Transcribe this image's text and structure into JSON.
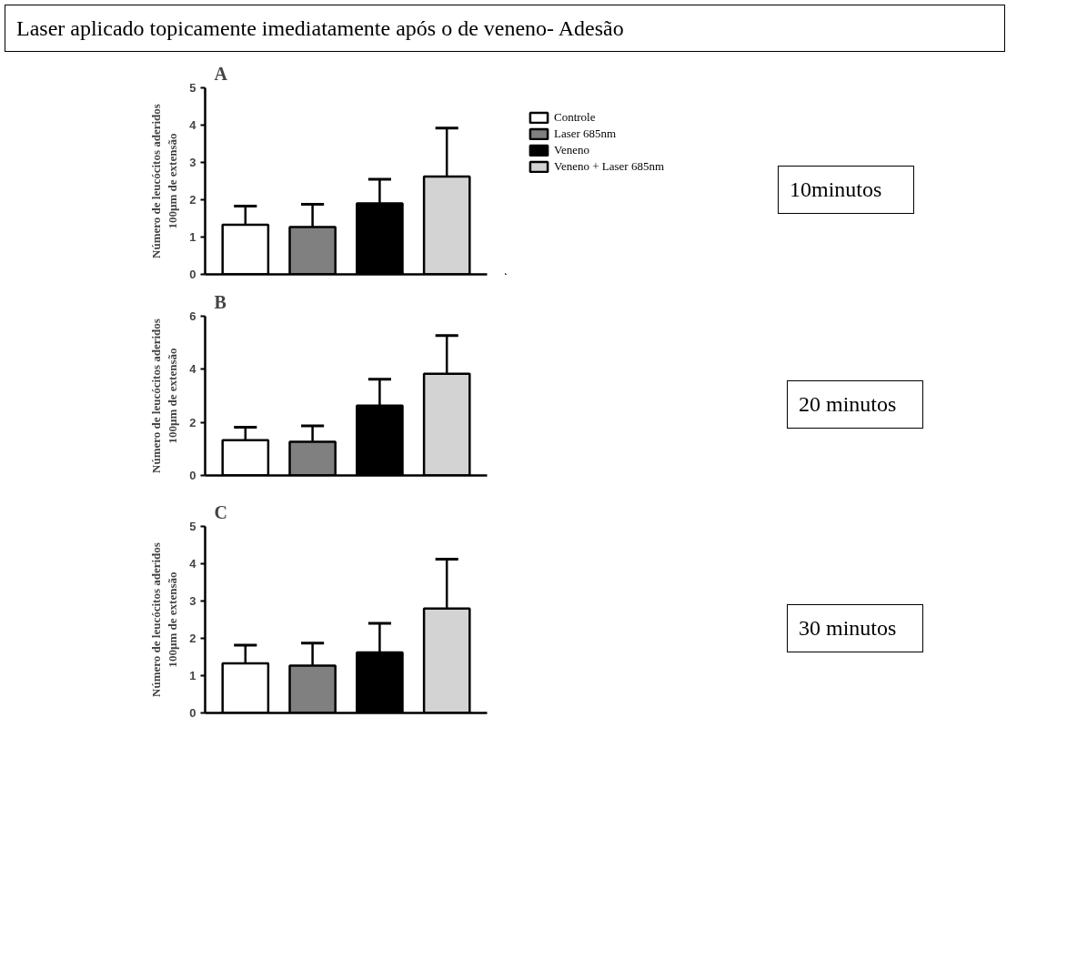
{
  "chart_data": [
    {
      "type": "bar",
      "title": "Laser aplicado topicamente imediatamente após o de veneno- Adesão",
      "subtitle": "A",
      "ylabel": "Número de leucócitos aderidos\n100µm de extensão",
      "categories": [
        null,
        null,
        null,
        null
      ],
      "ylim": [
        0,
        5
      ],
      "yticks": [
        0,
        1,
        2,
        3,
        4,
        5
      ],
      "tick_labels": "y",
      "grid": false,
      "legend": "top right",
      "annotations": [
        "10minutos"
      ],
      "series": [
        {
          "name": "Controle",
          "color": "#ffffff",
          "values": [
            1.33,
            null,
            null,
            null
          ],
          "errors": [
            [
              1.33,
              1.83
            ],
            null,
            null,
            null
          ]
        },
        {
          "name": "Laser 685nm",
          "color": "#808080",
          "values": [
            null,
            1.27,
            null,
            null
          ],
          "errors": [
            null,
            [
              1.27,
              1.88
            ],
            null,
            null
          ]
        },
        {
          "name": "Veneno",
          "color": "#000000",
          "values": [
            null,
            null,
            1.9,
            null
          ],
          "errors": [
            null,
            null,
            [
              1.9,
              2.55
            ],
            null
          ]
        },
        {
          "name": "Veneno + Laser 685nm",
          "color": "#d3d3d3",
          "values": [
            null,
            null,
            null,
            2.62
          ],
          "errors": [
            null,
            null,
            null,
            [
              2.62,
              3.92
            ]
          ]
        }
      ]
    },
    {
      "type": "bar",
      "title": "B",
      "ylabel": "Número de leucócitos aderidos\n100µm de extensão",
      "categories": [
        null,
        null,
        null,
        null
      ],
      "ylim": [
        0,
        6
      ],
      "yticks": [
        0,
        2,
        4,
        6
      ],
      "tick_labels": "y",
      "grid": false,
      "annotations": [
        "20 minutos"
      ],
      "series": [
        {
          "color": "#ffffff",
          "values": [
            1.33,
            null,
            null,
            null
          ],
          "errors": [
            [
              1.33,
              1.82
            ],
            null,
            null,
            null
          ]
        },
        {
          "color": "#808080",
          "values": [
            null,
            1.27,
            null,
            null
          ],
          "errors": [
            null,
            [
              1.27,
              1.87
            ],
            null,
            null
          ]
        },
        {
          "color": "#000000",
          "values": [
            null,
            null,
            2.63,
            null
          ],
          "errors": [
            null,
            null,
            [
              2.63,
              3.63
            ],
            null
          ]
        },
        {
          "color": "#d3d3d3",
          "values": [
            null,
            null,
            null,
            3.83
          ],
          "errors": [
            null,
            null,
            null,
            [
              3.83,
              5.27
            ]
          ]
        }
      ]
    },
    {
      "type": "bar",
      "title": "C",
      "ylabel": "Número de leucócitos aderidos\n100µm de extensão",
      "categories": [
        null,
        null,
        null,
        null
      ],
      "ylim": [
        0,
        5
      ],
      "yticks": [
        0,
        1,
        2,
        3,
        4,
        5
      ],
      "tick_labels": "y",
      "grid": false,
      "annotations": [
        "30 minutos"
      ],
      "series": [
        {
          "color": "#ffffff",
          "values": [
            1.33,
            null,
            null,
            null
          ],
          "errors": [
            [
              1.33,
              1.82
            ],
            null,
            null,
            null
          ]
        },
        {
          "color": "#808080",
          "values": [
            null,
            1.27,
            null,
            null
          ],
          "errors": [
            null,
            [
              1.27,
              1.87
            ],
            null,
            null
          ]
        },
        {
          "color": "#000000",
          "values": [
            null,
            null,
            1.62,
            null
          ],
          "errors": [
            null,
            null,
            [
              1.62,
              2.4
            ],
            null
          ]
        },
        {
          "color": "#d3d3d3",
          "values": [
            null,
            null,
            null,
            2.8
          ],
          "errors": [
            null,
            null,
            null,
            [
              2.8,
              4.12
            ]
          ]
        }
      ]
    }
  ]
}
